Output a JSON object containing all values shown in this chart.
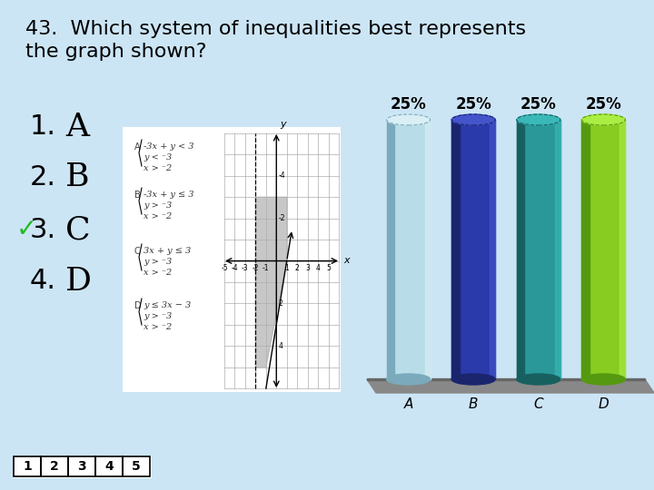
{
  "title_line1": "43.  Which system of inequalities best represents",
  "title_line2": "the graph shown?",
  "background_color": "#cce5f5",
  "bar_colors_main": [
    "#b8dde8",
    "#2b3aaa",
    "#2a9898",
    "#88cc22"
  ],
  "bar_colors_light": [
    "#daeef5",
    "#4455cc",
    "#3ab8b8",
    "#aaee44"
  ],
  "bar_colors_dark": [
    "#7aaabb",
    "#1a256e",
    "#186060",
    "#559910"
  ],
  "bar_labels": [
    "25%",
    "25%",
    "25%",
    "25%"
  ],
  "x_tick_labels": [
    "A",
    "B",
    "C",
    "D"
  ],
  "choices_nums": [
    "1.",
    "2.",
    "3.",
    "4."
  ],
  "choices_letters": [
    "A",
    "B",
    "C",
    "D"
  ],
  "checkmark_index": 2,
  "nav_labels": [
    "1",
    "2",
    "3",
    "4",
    "5"
  ],
  "options_left": [
    [
      "-3x + y < 3",
      "y < ⁻3",
      "x > ⁻2"
    ],
    [
      "-3x + y ≤ 3",
      "y > ⁻3",
      "x > ⁻2"
    ],
    [
      "3x + y ≤ 3",
      "y > ⁻3",
      "x > ⁻2"
    ],
    [
      "y ≤ 3x − 3",
      "y > ⁻3",
      "x > ⁻2"
    ]
  ],
  "options_labels": [
    "A",
    "B",
    "C",
    "D"
  ]
}
